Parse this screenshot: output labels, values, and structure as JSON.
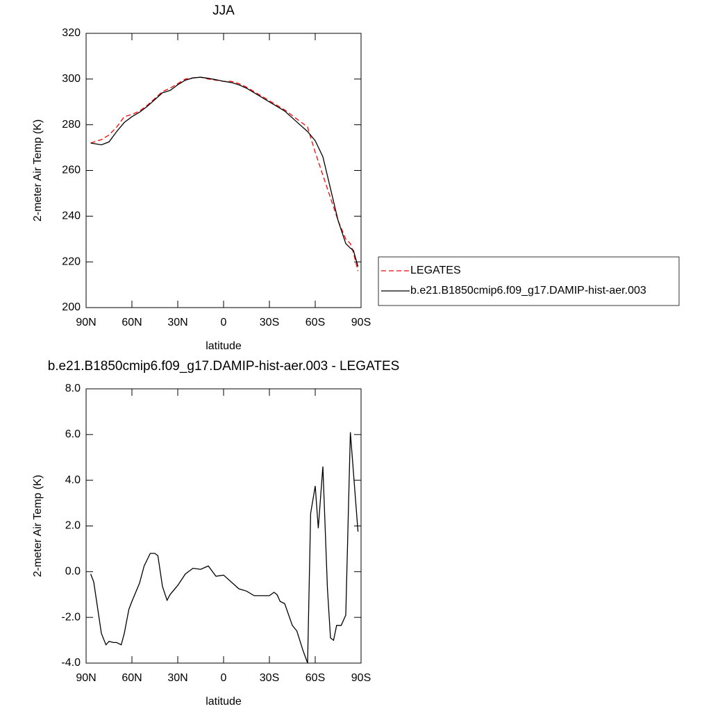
{
  "chart_data": [
    {
      "type": "line",
      "title": "JJA",
      "x_label": "latitude",
      "y_label": "2-meter Air Temp (K)",
      "x": [
        87,
        80,
        75,
        70,
        65,
        60,
        55,
        50,
        45,
        40,
        35,
        30,
        25,
        20,
        15,
        10,
        5,
        0,
        -5,
        -10,
        -15,
        -20,
        -25,
        -30,
        -35,
        -40,
        -45,
        -50,
        -55,
        -60,
        -65,
        -70,
        -75,
        -80,
        -83,
        -85,
        -88
      ],
      "series": [
        {
          "name": "LEGATES",
          "color": "#ff0000",
          "dash": true,
          "values": [
            272,
            273.5,
            275.5,
            279,
            283.5,
            284.5,
            286,
            288.5,
            291.5,
            294.5,
            296,
            298,
            300,
            300.5,
            300.8,
            300,
            299.5,
            299,
            299,
            298,
            296.5,
            294.5,
            292.5,
            290.5,
            288.5,
            286.5,
            284,
            281.5,
            279,
            268,
            258,
            248,
            238,
            230,
            228,
            224,
            216
          ]
        },
        {
          "name": "b.e21.B1850cmip6.f09_g17.DAMIP-hist-aer.003",
          "color": "#000000",
          "dash": false,
          "values": [
            272,
            271.2,
            272.5,
            277,
            281,
            283.5,
            285.5,
            288,
            291,
            294,
            295,
            297.5,
            299.5,
            300.5,
            300.8,
            300.3,
            299.7,
            299,
            298.5,
            297.5,
            296,
            294,
            292,
            290,
            288,
            286,
            283,
            280,
            277,
            273,
            266,
            252,
            238,
            228,
            226,
            225,
            218
          ]
        }
      ],
      "xlim": [
        90,
        -90
      ],
      "xticks": [
        {
          "value": 90,
          "label": "90N"
        },
        {
          "value": 60,
          "label": "60N"
        },
        {
          "value": 30,
          "label": "30N"
        },
        0,
        {
          "value": -30,
          "label": "30S"
        },
        {
          "value": -60,
          "label": "60S"
        },
        {
          "value": -90,
          "label": "90S"
        }
      ],
      "ylim": [
        200,
        320
      ],
      "yticks": [
        200,
        220,
        240,
        260,
        280,
        300,
        320
      ],
      "legend": "right"
    },
    {
      "type": "line",
      "title": "b.e21.B1850cmip6.f09_g17.DAMIP-hist-aer.003 - LEGATES",
      "x_label": "latitude",
      "y_label": "2-meter Air Temp (K)",
      "x": [
        87,
        85,
        80,
        77,
        75,
        72,
        70,
        67,
        65,
        62,
        60,
        55,
        52,
        48,
        45,
        43,
        40,
        37,
        35,
        30,
        25,
        20,
        15,
        10,
        5,
        0,
        -5,
        -10,
        -15,
        -20,
        -25,
        -30,
        -33,
        -35,
        -37,
        -40,
        -45,
        -48,
        -52,
        -55,
        -57,
        -60,
        -62,
        -65,
        -68,
        -70,
        -72,
        -74,
        -77,
        -80,
        -83,
        -88
      ],
      "series": [
        {
          "color": "#000000",
          "dash": false,
          "values": [
            -0.1,
            -0.45,
            -2.7,
            -3.2,
            -3.05,
            -3.1,
            -3.1,
            -3.2,
            -2.7,
            -1.65,
            -1.3,
            -0.5,
            0.25,
            0.8,
            0.8,
            0.7,
            -0.65,
            -1.25,
            -1.0,
            -0.6,
            -0.1,
            0.15,
            0.1,
            0.25,
            -0.2,
            -0.15,
            -0.45,
            -0.75,
            -0.85,
            -1.05,
            -1.05,
            -1.05,
            -0.9,
            -1.0,
            -1.3,
            -1.4,
            -2.35,
            -2.6,
            -3.45,
            -4.0,
            2.55,
            3.75,
            1.9,
            4.6,
            -0.75,
            -2.9,
            -3.0,
            -2.35,
            -2.35,
            -1.9,
            6.1,
            1.75
          ]
        }
      ],
      "xlim": [
        90,
        -90
      ],
      "xticks": [
        {
          "value": 90,
          "label": "90N"
        },
        {
          "value": 60,
          "label": "60N"
        },
        {
          "value": 30,
          "label": "30N"
        },
        0,
        {
          "value": -30,
          "label": "30S"
        },
        {
          "value": -60,
          "label": "60S"
        },
        {
          "value": -90,
          "label": "90S"
        }
      ],
      "ylim": [
        -4,
        8
      ],
      "yticks": [
        {
          "value": -4,
          "label": "-4.0"
        },
        {
          "value": -2,
          "label": "-2.0"
        },
        {
          "value": 0,
          "label": "0.0"
        },
        {
          "value": 2,
          "label": "2.0"
        },
        {
          "value": 4,
          "label": "4.0"
        },
        {
          "value": 6,
          "label": "6.0"
        },
        {
          "value": 8,
          "label": "8.0"
        }
      ]
    }
  ]
}
